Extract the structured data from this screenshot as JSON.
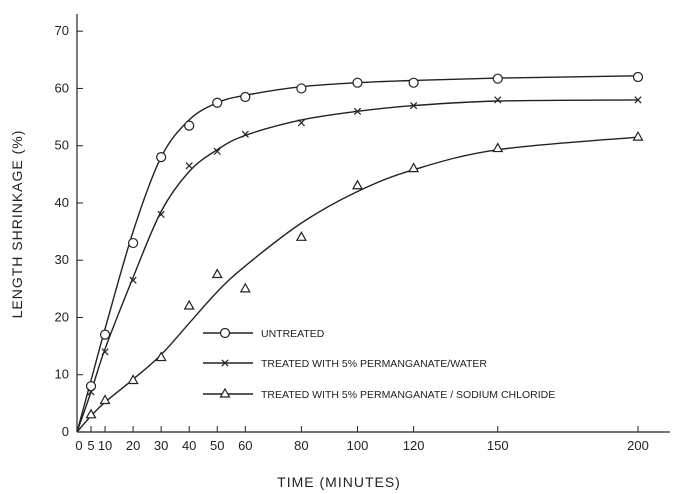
{
  "chart_data": {
    "type": "line",
    "title": "",
    "xlabel": "TIME (MINUTES)",
    "ylabel": "LENGTH SHRINKAGE (%)",
    "xlim": [
      0,
      200
    ],
    "ylim": [
      0,
      73
    ],
    "x_ticks": [
      0,
      5,
      10,
      20,
      30,
      40,
      50,
      60,
      80,
      100,
      120,
      150,
      200
    ],
    "x_tick_labels": [
      "0",
      "5",
      "10",
      "20",
      "30",
      "40",
      "50",
      "60",
      "80",
      "100",
      "120",
      "150",
      "200"
    ],
    "y_ticks": [
      0,
      10,
      20,
      30,
      40,
      50,
      60,
      70
    ],
    "y_tick_labels": [
      "0",
      "10",
      "20",
      "30",
      "40",
      "50",
      "60",
      "70"
    ],
    "grid": false,
    "legend_position": "bottom-right",
    "series": [
      {
        "name": "UNTREATED",
        "marker": "circle",
        "x": [
          0,
          5,
          10,
          20,
          30,
          40,
          50,
          60,
          80,
          100,
          120,
          150,
          200
        ],
        "y": [
          0,
          8,
          17,
          33,
          48,
          53.5,
          57.5,
          58.5,
          60,
          61,
          61,
          61.7,
          62
        ]
      },
      {
        "name": "TREATED WITH 5% PERMANGANATE/WATER",
        "marker": "x",
        "x": [
          0,
          5,
          10,
          20,
          30,
          40,
          50,
          60,
          80,
          100,
          120,
          150,
          200
        ],
        "y": [
          0,
          7,
          14,
          26.5,
          38,
          46.5,
          49,
          52,
          54,
          56,
          57,
          58,
          58
        ]
      },
      {
        "name": "TREATED WITH 5% PERMANGANATE / SODIUM CHLORIDE",
        "marker": "triangle",
        "x": [
          0,
          5,
          10,
          20,
          30,
          40,
          50,
          60,
          80,
          100,
          120,
          150,
          200
        ],
        "y": [
          0,
          3,
          5.5,
          9,
          13,
          22,
          27.5,
          25,
          34,
          43,
          46,
          49.5,
          51.5
        ]
      }
    ],
    "fitted_curves": [
      {
        "series": "UNTREATED",
        "y": [
          0,
          9,
          18,
          35,
          48,
          54.5,
          57.5,
          58.8,
          60.3,
          61,
          61.4,
          61.8,
          62.2
        ]
      },
      {
        "series": "TREATED WITH 5% PERMANGANATE/WATER",
        "y": [
          0,
          7,
          14.5,
          27,
          38.5,
          45.5,
          49.3,
          51.8,
          54.5,
          56,
          57,
          57.8,
          58
        ]
      },
      {
        "series": "TREATED WITH 5% PERMANGANATE / SODIUM CHLORIDE",
        "y": [
          0,
          2.8,
          5.2,
          9.2,
          13.5,
          19,
          24.5,
          29,
          36.5,
          42,
          45.8,
          49.3,
          51.5
        ]
      }
    ]
  }
}
